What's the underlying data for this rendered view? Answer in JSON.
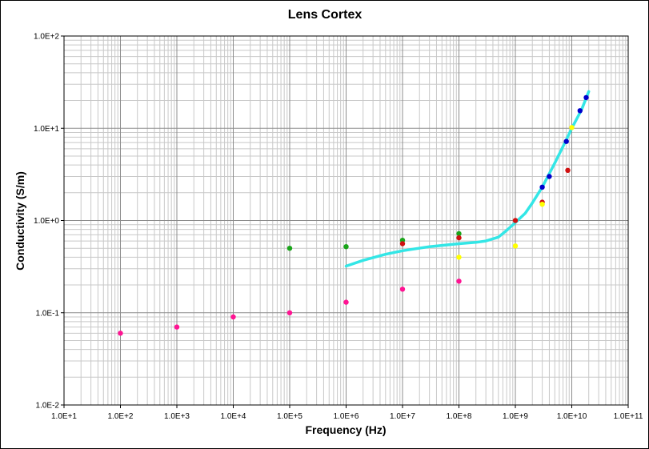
{
  "chart_data": {
    "type": "scatter",
    "title": "Lens Cortex",
    "xlabel": "Frequency (Hz)",
    "ylabel": "Conductivity (S/m)",
    "x_scale": "log",
    "y_scale": "log",
    "xlim": [
      10,
      100000000000
    ],
    "ylim": [
      0.01,
      100
    ],
    "grid": true,
    "x_tick_labels": [
      "1.0E+1",
      "1.0E+2",
      "1.0E+3",
      "1.0E+4",
      "1.0E+5",
      "1.0E+6",
      "1.0E+7",
      "1.0E+8",
      "1.0E+9",
      "1.0E+10",
      "1.0E+11"
    ],
    "y_tick_labels": [
      "1.0E-2",
      "1.0E-1",
      "1.0E+0",
      "1.0E+1",
      "1.0E+2"
    ],
    "colors": {
      "curve": "#33e6e6",
      "magenta": "#ff1493",
      "green": "#1aa51a",
      "red": "#d01010",
      "yellow": "#ffff00",
      "blue": "#0000cc",
      "grid_minor": "#c8c8c8",
      "grid_major": "#8c8c8c"
    },
    "series": [
      {
        "kind": "line",
        "color_key": "curve",
        "points": [
          [
            1000000,
            0.32
          ],
          [
            2000000,
            0.37
          ],
          [
            5000000,
            0.43
          ],
          [
            10000000,
            0.47
          ],
          [
            30000000,
            0.52
          ],
          [
            100000000,
            0.56
          ],
          [
            200000000,
            0.58
          ],
          [
            300000000,
            0.6
          ],
          [
            500000000,
            0.66
          ],
          [
            700000000,
            0.78
          ],
          [
            1000000000,
            0.95
          ],
          [
            1500000000,
            1.2
          ],
          [
            2000000000,
            1.55
          ],
          [
            3000000000,
            2.3
          ],
          [
            5000000000,
            4.2
          ],
          [
            8000000000,
            7.5
          ],
          [
            10000000000,
            10
          ],
          [
            15000000000,
            16
          ],
          [
            20000000000,
            25
          ]
        ]
      },
      {
        "kind": "points",
        "color_key": "magenta",
        "points": [
          [
            100,
            0.06
          ],
          [
            1000,
            0.07
          ],
          [
            10000,
            0.09
          ],
          [
            100000,
            0.1
          ],
          [
            1000000,
            0.13
          ],
          [
            10000000,
            0.18
          ],
          [
            100000000,
            0.22
          ]
        ]
      },
      {
        "kind": "points",
        "color_key": "green",
        "points": [
          [
            100000,
            0.5
          ],
          [
            1000000,
            0.52
          ],
          [
            10000000,
            0.61
          ],
          [
            100000000,
            0.72
          ]
        ]
      },
      {
        "kind": "points",
        "color_key": "red",
        "points": [
          [
            10000000,
            0.56
          ],
          [
            100000000,
            0.65
          ],
          [
            1000000000,
            1.0
          ],
          [
            3000000000,
            1.58
          ],
          [
            8500000000,
            3.5
          ]
        ]
      },
      {
        "kind": "points",
        "color_key": "yellow",
        "points": [
          [
            100000000,
            0.4
          ],
          [
            1000000000,
            0.53
          ],
          [
            3000000000,
            1.5
          ],
          [
            10000000000,
            10.2
          ]
        ]
      },
      {
        "kind": "points",
        "color_key": "blue",
        "points": [
          [
            3000000000,
            2.3
          ],
          [
            4000000000,
            3.0
          ],
          [
            8000000000,
            7.2
          ],
          [
            14000000000,
            15.5
          ],
          [
            18000000000,
            21.5
          ]
        ]
      }
    ]
  }
}
